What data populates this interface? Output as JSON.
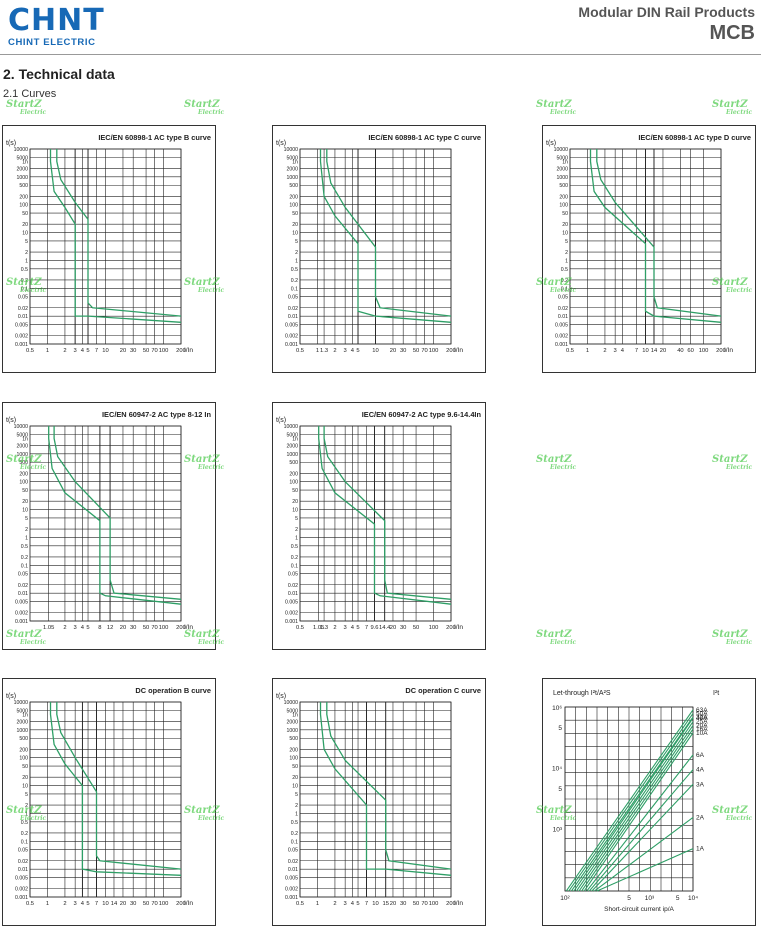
{
  "header": {
    "logo_text": "CHNT",
    "logo_sub": "CHINT ELECTRIC",
    "product_line": "Modular DIN Rail Products",
    "product": "MCB"
  },
  "section": {
    "title": "2. Technical data",
    "subtitle": "2.1 Curves"
  },
  "watermark": {
    "line1": "StartZ",
    "line2": "Electric"
  },
  "colors": {
    "curve": "#2e9f66",
    "grid": "#222",
    "frame": "#333",
    "logo": "#1769b6",
    "watermark": "#49c949"
  },
  "time_ticks": [
    "10000",
    "5000",
    "1h",
    "2000",
    "1000",
    "500",
    "200",
    "100",
    "50",
    "20",
    "10",
    "5",
    "2",
    "1",
    "0.5",
    "0.2",
    "0.1",
    "0.05",
    "0.02",
    "0.01",
    "0.005",
    "0.002",
    "0.001"
  ],
  "chart_data": [
    {
      "type": "line",
      "title": "IEC/EN 60898-1 AC type B curve",
      "ylabel": "t(s)",
      "xlabel": "I/In",
      "xticks": [
        "0.5",
        "1",
        "2",
        "3",
        "4",
        "5",
        "7",
        "10",
        "20",
        "30",
        "50",
        "70",
        "100",
        "200"
      ],
      "magnetic_trip": [
        3,
        5
      ],
      "series": [
        {
          "x": [
            1.13,
            1.13,
            1.3,
            2,
            3,
            3,
            5,
            200
          ],
          "y": [
            10000,
            3600,
            300,
            80,
            20,
            0.01,
            0.01,
            0.006
          ]
        },
        {
          "x": [
            1.45,
            1.45,
            1.7,
            3,
            5,
            5,
            6,
            200
          ],
          "y": [
            10000,
            3600,
            800,
            120,
            30,
            0.03,
            0.02,
            0.01
          ]
        }
      ]
    },
    {
      "type": "line",
      "title": "IEC/EN 60898-1 AC type C curve",
      "ylabel": "t(s)",
      "xlabel": "I/In",
      "xticks": [
        "0.5",
        "1",
        "1.3",
        "2",
        "3",
        "4",
        "5",
        "10",
        "20",
        "30",
        "50",
        "70",
        "100",
        "200"
      ],
      "magnetic_trip": [
        5,
        10
      ],
      "series": [
        {
          "x": [
            1.13,
            1.13,
            1.3,
            2,
            5,
            5,
            10,
            200
          ],
          "y": [
            10000,
            3600,
            200,
            40,
            4,
            0.015,
            0.01,
            0.006
          ]
        },
        {
          "x": [
            1.45,
            1.45,
            1.7,
            3,
            10,
            10,
            12,
            200
          ],
          "y": [
            10000,
            3600,
            600,
            80,
            3,
            0.05,
            0.02,
            0.01
          ]
        }
      ]
    },
    {
      "type": "line",
      "title": "IEC/EN 60898-1 AC type D curve",
      "ylabel": "t(s)",
      "xlabel": "I/In",
      "xticks": [
        "0.5",
        "1",
        "2",
        "3",
        "4",
        "7",
        "10",
        "14",
        "20",
        "40",
        "60",
        "100",
        "200"
      ],
      "magnetic_trip": [
        10,
        14
      ],
      "series": [
        {
          "x": [
            1.13,
            1.13,
            1.3,
            2,
            10,
            10,
            14,
            200
          ],
          "y": [
            10000,
            3600,
            300,
            80,
            4,
            0.015,
            0.01,
            0.006
          ]
        },
        {
          "x": [
            1.45,
            1.45,
            1.7,
            3,
            14,
            14,
            16,
            200
          ],
          "y": [
            10000,
            3600,
            800,
            120,
            3,
            0.05,
            0.02,
            0.01
          ]
        }
      ]
    },
    {
      "type": "line",
      "title": "IEC/EN 60947-2 AC type 8-12 In",
      "ylabel": "t(s)",
      "xlabel": "I/In",
      "xticks": [
        "1.05",
        "2",
        "3",
        "4",
        "5",
        "8",
        "12",
        "20",
        "30",
        "50",
        "70",
        "100",
        "200"
      ],
      "magnetic_trip": [
        8,
        12
      ],
      "series": [
        {
          "x": [
            1.05,
            1.05,
            1.2,
            2,
            8,
            8,
            10,
            200
          ],
          "y": [
            10000,
            3600,
            300,
            40,
            4,
            0.01,
            0.008,
            0.004
          ]
        },
        {
          "x": [
            1.3,
            1.3,
            1.5,
            3,
            12,
            12,
            14,
            200
          ],
          "y": [
            10000,
            3600,
            800,
            100,
            5,
            0.03,
            0.01,
            0.006
          ]
        }
      ]
    },
    {
      "type": "line",
      "title": "IEC/EN 60947-2 AC type 9.6-14.4In",
      "ylabel": "t(s)",
      "xlabel": "I/In",
      "xticks": [
        "0.5",
        "1.05",
        "1.3",
        "2",
        "3",
        "4",
        "5",
        "7",
        "9.6",
        "14.4",
        "20",
        "30",
        "50",
        "100",
        "200"
      ],
      "magnetic_trip": [
        9.6,
        14.4
      ],
      "series": [
        {
          "x": [
            1.05,
            1.05,
            1.2,
            2,
            9.6,
            9.6,
            12,
            200
          ],
          "y": [
            10000,
            3600,
            300,
            40,
            3,
            0.01,
            0.008,
            0.004
          ]
        },
        {
          "x": [
            1.3,
            1.3,
            1.5,
            3,
            14.4,
            14.4,
            16,
            200
          ],
          "y": [
            10000,
            3600,
            800,
            100,
            4,
            0.03,
            0.01,
            0.006
          ]
        }
      ]
    },
    {
      "type": "line",
      "title": "DC operation B curve",
      "ylabel": "t(s)",
      "xlabel": "I/In",
      "xticks": [
        "0.5",
        "1",
        "2",
        "3",
        "4",
        "5",
        "7",
        "10",
        "14",
        "20",
        "30",
        "50",
        "70",
        "100",
        "200"
      ],
      "magnetic_trip": [
        4,
        7
      ],
      "series": [
        {
          "x": [
            1.13,
            1.13,
            1.3,
            2,
            4,
            4,
            7,
            200
          ],
          "y": [
            10000,
            3600,
            300,
            60,
            10,
            0.01,
            0.008,
            0.006
          ]
        },
        {
          "x": [
            1.45,
            1.45,
            1.7,
            3,
            7,
            7,
            8,
            200
          ],
          "y": [
            10000,
            3600,
            800,
            100,
            6,
            0.03,
            0.02,
            0.01
          ]
        }
      ]
    },
    {
      "type": "line",
      "title": "DC operation C curve",
      "ylabel": "t(s)",
      "xlabel": "I/In",
      "xticks": [
        "0.5",
        "1",
        "2",
        "3",
        "4",
        "5",
        "7",
        "10",
        "15",
        "20",
        "30",
        "50",
        "70",
        "100",
        "200"
      ],
      "magnetic_trip": [
        7,
        15
      ],
      "series": [
        {
          "x": [
            1.13,
            1.13,
            1.3,
            2,
            7,
            7,
            15,
            200
          ],
          "y": [
            10000,
            3600,
            200,
            40,
            2,
            0.01,
            0.01,
            0.006
          ]
        },
        {
          "x": [
            1.45,
            1.45,
            1.7,
            3,
            15,
            15,
            17,
            200
          ],
          "y": [
            10000,
            3600,
            600,
            80,
            3,
            0.05,
            0.02,
            0.01
          ]
        }
      ]
    },
    {
      "type": "line",
      "title": "Let-through I²t/A²S",
      "title_right": "I²t",
      "xlabel": "Short-circuit current ip/A",
      "yticks": [
        "10⁶",
        "5",
        "10⁴",
        "5",
        "10³"
      ],
      "xticks": [
        "10²",
        "5",
        "10³",
        "5",
        "10⁴"
      ],
      "series_labels": [
        "63A",
        "50A",
        "32A",
        "40A",
        "25A",
        "20A",
        "16A",
        "10A",
        "6A",
        "4A",
        "3A",
        "2A",
        "1A"
      ],
      "series_ends": [
        0.985,
        0.965,
        0.945,
        0.94,
        0.92,
        0.9,
        0.88,
        0.86,
        0.74,
        0.66,
        0.58,
        0.4,
        0.23
      ]
    }
  ]
}
